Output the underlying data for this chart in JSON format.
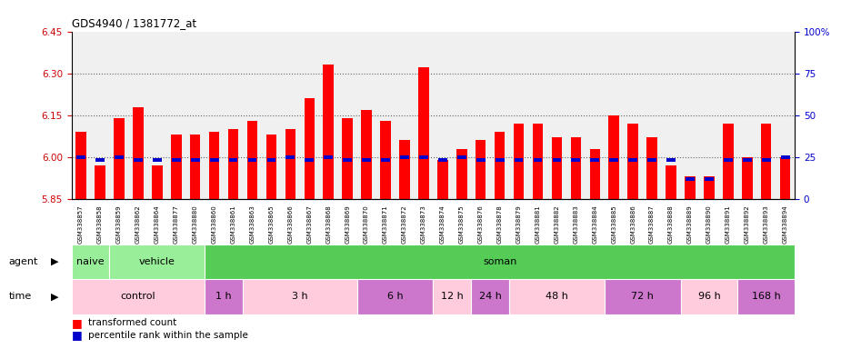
{
  "title": "GDS4940 / 1381772_at",
  "samples": [
    "GSM338857",
    "GSM338858",
    "GSM338859",
    "GSM338862",
    "GSM338864",
    "GSM338877",
    "GSM338880",
    "GSM338860",
    "GSM338861",
    "GSM338863",
    "GSM338865",
    "GSM338866",
    "GSM338867",
    "GSM338868",
    "GSM338869",
    "GSM338870",
    "GSM338871",
    "GSM338872",
    "GSM338873",
    "GSM338874",
    "GSM338875",
    "GSM338876",
    "GSM338878",
    "GSM338879",
    "GSM338881",
    "GSM338882",
    "GSM338883",
    "GSM338884",
    "GSM338885",
    "GSM338886",
    "GSM338887",
    "GSM338888",
    "GSM338889",
    "GSM338890",
    "GSM338891",
    "GSM338892",
    "GSM338893",
    "GSM338894"
  ],
  "red_values": [
    6.09,
    5.97,
    6.14,
    6.18,
    5.97,
    6.08,
    6.08,
    6.09,
    6.1,
    6.13,
    6.08,
    6.1,
    6.21,
    6.33,
    6.14,
    6.17,
    6.13,
    6.06,
    6.32,
    5.99,
    6.03,
    6.06,
    6.09,
    6.12,
    6.12,
    6.07,
    6.07,
    6.03,
    6.15,
    6.12,
    6.07,
    5.97,
    5.93,
    5.93,
    6.12,
    6.0,
    6.12,
    6.0
  ],
  "blue_values": [
    6.0,
    5.99,
    6.0,
    5.99,
    5.99,
    5.99,
    5.99,
    5.99,
    5.99,
    5.99,
    5.99,
    6.0,
    5.99,
    6.0,
    5.99,
    5.99,
    5.99,
    6.0,
    6.0,
    5.99,
    6.0,
    5.99,
    5.99,
    5.99,
    5.99,
    5.99,
    5.99,
    5.99,
    5.99,
    5.99,
    5.99,
    5.99,
    5.92,
    5.92,
    5.99,
    5.99,
    5.99,
    6.0
  ],
  "y_min": 5.85,
  "y_max": 6.45,
  "y_ticks_left": [
    5.85,
    6.0,
    6.15,
    6.3,
    6.45
  ],
  "y_ticks_right": [
    0,
    25,
    50,
    75,
    100
  ],
  "agent_groups": [
    {
      "label": "naive",
      "start": 0,
      "end": 2,
      "light": true
    },
    {
      "label": "vehicle",
      "start": 2,
      "end": 7,
      "light": true
    },
    {
      "label": "soman",
      "start": 7,
      "end": 38,
      "light": false
    }
  ],
  "time_groups": [
    {
      "label": "control",
      "start": 0,
      "end": 7,
      "alt": false
    },
    {
      "label": "1 h",
      "start": 7,
      "end": 9,
      "alt": true
    },
    {
      "label": "3 h",
      "start": 9,
      "end": 15,
      "alt": false
    },
    {
      "label": "6 h",
      "start": 15,
      "end": 19,
      "alt": true
    },
    {
      "label": "12 h",
      "start": 19,
      "end": 21,
      "alt": false
    },
    {
      "label": "24 h",
      "start": 21,
      "end": 23,
      "alt": true
    },
    {
      "label": "48 h",
      "start": 23,
      "end": 28,
      "alt": false
    },
    {
      "label": "72 h",
      "start": 28,
      "end": 32,
      "alt": true
    },
    {
      "label": "96 h",
      "start": 32,
      "end": 35,
      "alt": false
    },
    {
      "label": "168 h",
      "start": 35,
      "end": 38,
      "alt": true
    }
  ],
  "bar_color_red": "#FF0000",
  "bar_color_blue": "#0000CC",
  "background_color": "#FFFFFF",
  "axis_bg_color": "#F0F0F0",
  "grid_color": "#666666",
  "left_axis_color": "#CC0000",
  "right_axis_color": "#0000CC",
  "naive_color": "#99EE99",
  "soman_color": "#55CC55",
  "time_light_color": "#FFCCDD",
  "time_alt_color": "#CC77CC"
}
